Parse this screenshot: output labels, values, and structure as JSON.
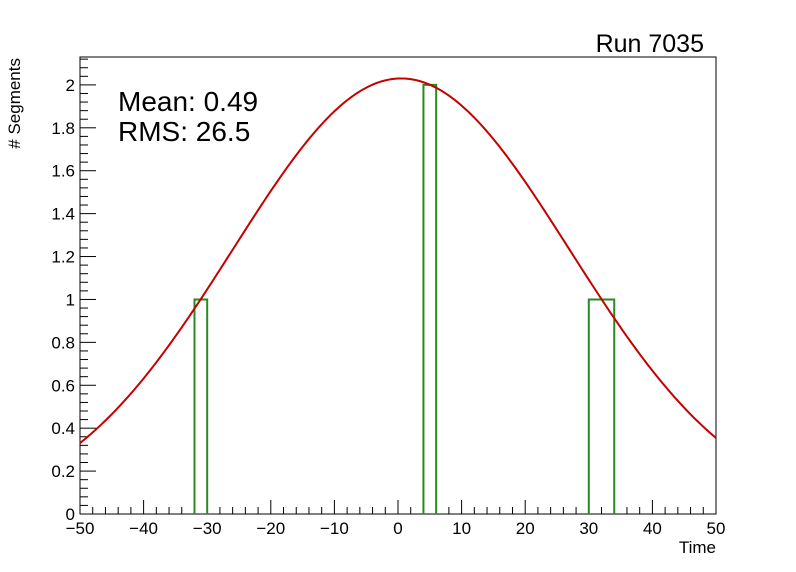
{
  "chart_data": {
    "type": "histogram",
    "title": "Run 7035",
    "xlabel": "Time",
    "ylabel": "# Segments",
    "xlim": [
      -50,
      50
    ],
    "ylim": [
      0,
      2.13
    ],
    "x_ticks": [
      -50,
      -40,
      -30,
      -20,
      -10,
      0,
      10,
      20,
      30,
      40,
      50
    ],
    "x_tick_labels": [
      "−50",
      "−40",
      "−30",
      "−20",
      "−10",
      "0",
      "10",
      "20",
      "30",
      "40",
      "50"
    ],
    "y_ticks": [
      0,
      0.2,
      0.4,
      0.6,
      0.8,
      1,
      1.2,
      1.4,
      1.6,
      1.8,
      2
    ],
    "y_tick_labels": [
      "0",
      "0.2",
      "0.4",
      "0.6",
      "0.8",
      "1",
      "1.2",
      "1.4",
      "1.6",
      "1.8",
      "2"
    ],
    "bins": [
      {
        "x_low": -32,
        "x_high": -30,
        "count": 1
      },
      {
        "x_low": 4,
        "x_high": 6,
        "count": 2
      },
      {
        "x_low": 30,
        "x_high": 34,
        "count": 1
      }
    ],
    "fit": {
      "type": "gaussian",
      "amplitude": 2.03,
      "mean": 0.49,
      "sigma": 26.5
    },
    "stats": {
      "mean_text": "Mean: 0.49",
      "rms_text": "RMS:  26.5"
    },
    "colors": {
      "histogram": "#2a8a1f",
      "fit": "#c40000",
      "axes": "#000000"
    }
  }
}
